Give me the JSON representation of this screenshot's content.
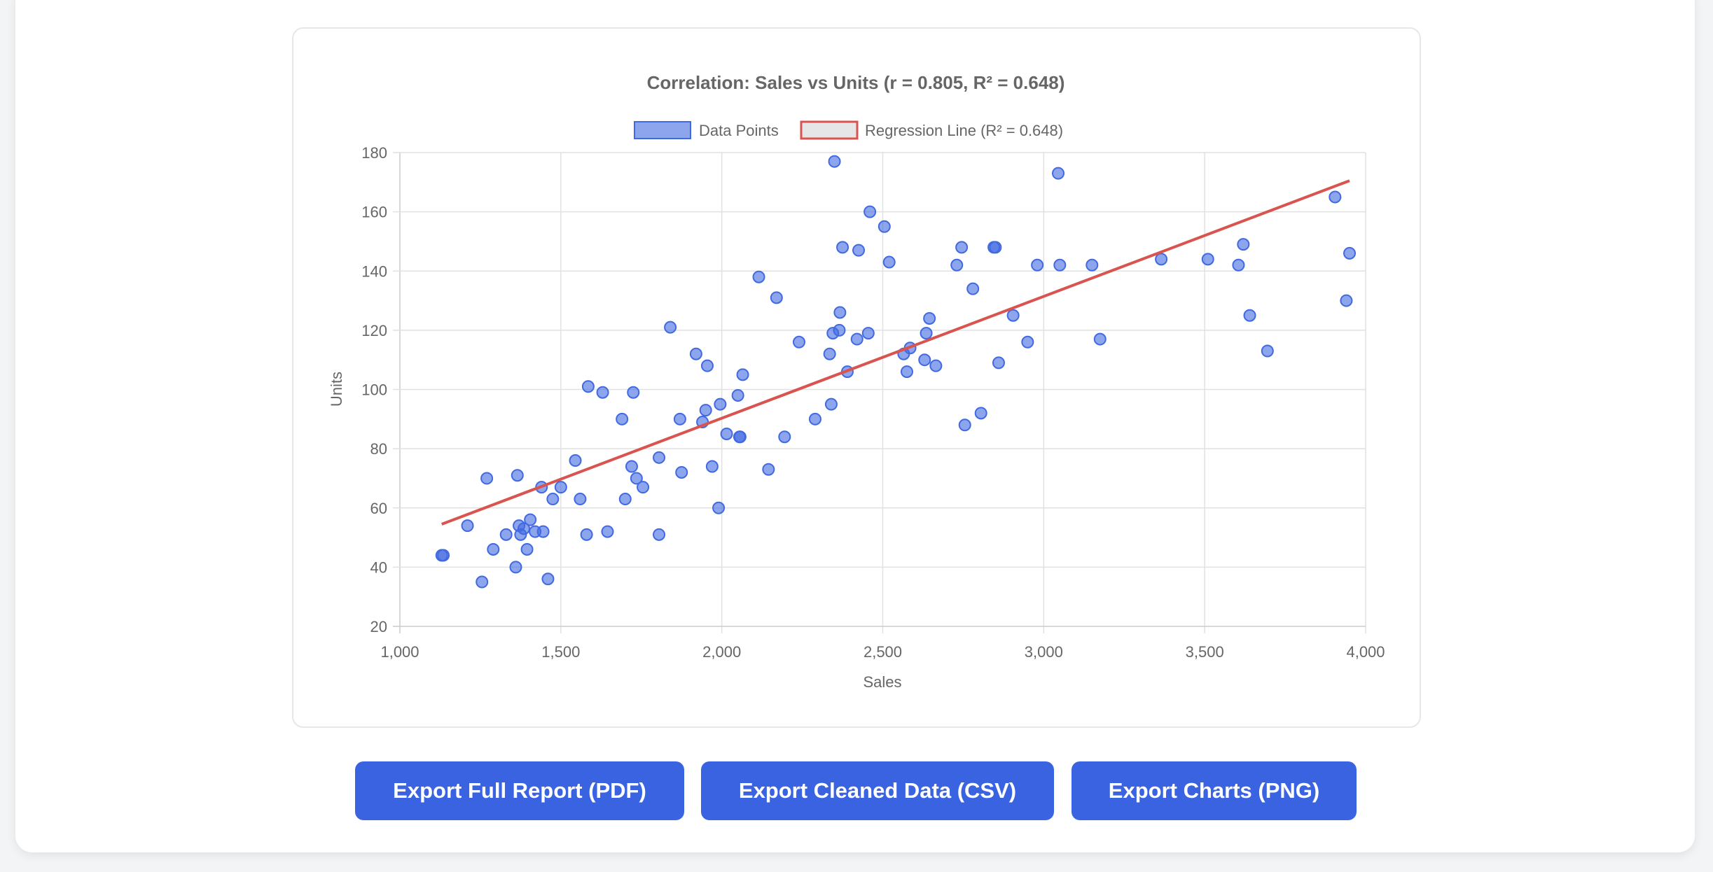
{
  "chart_data": {
    "type": "scatter",
    "title": "Correlation: Sales vs Units (r = 0.805, R² = 0.648)",
    "xlabel": "Sales",
    "ylabel": "Units",
    "xlim": [
      1000,
      4000
    ],
    "ylim": [
      20,
      180
    ],
    "xticks": [
      "1,000",
      "1,500",
      "2,000",
      "2,500",
      "3,000",
      "3,500",
      "4,000"
    ],
    "yticks": [
      "20",
      "40",
      "60",
      "80",
      "100",
      "120",
      "140",
      "160",
      "180"
    ],
    "grid": true,
    "legend_placement": "top",
    "legend": [
      {
        "label": "Data Points",
        "color": "#4169e1"
      },
      {
        "label": "Regression Line (R² = 0.648)",
        "color": "#d9534f"
      }
    ],
    "series": [
      {
        "name": "Data Points",
        "type": "scatter",
        "color": "#4169e1",
        "points": [
          [
            1130,
            44
          ],
          [
            1135,
            44
          ],
          [
            1210,
            54
          ],
          [
            1255,
            35
          ],
          [
            1270,
            70
          ],
          [
            1290,
            46
          ],
          [
            1330,
            51
          ],
          [
            1360,
            40
          ],
          [
            1365,
            71
          ],
          [
            1370,
            54
          ],
          [
            1375,
            51
          ],
          [
            1385,
            53
          ],
          [
            1395,
            46
          ],
          [
            1405,
            56
          ],
          [
            1420,
            52
          ],
          [
            1440,
            67
          ],
          [
            1445,
            52
          ],
          [
            1460,
            36
          ],
          [
            1475,
            63
          ],
          [
            1500,
            67
          ],
          [
            1545,
            76
          ],
          [
            1560,
            63
          ],
          [
            1580,
            51
          ],
          [
            1585,
            101
          ],
          [
            1630,
            99
          ],
          [
            1645,
            52
          ],
          [
            1690,
            90
          ],
          [
            1700,
            63
          ],
          [
            1720,
            74
          ],
          [
            1725,
            99
          ],
          [
            1735,
            70
          ],
          [
            1755,
            67
          ],
          [
            1805,
            51
          ],
          [
            1805,
            77
          ],
          [
            1840,
            121
          ],
          [
            1870,
            90
          ],
          [
            1875,
            72
          ],
          [
            1920,
            112
          ],
          [
            1940,
            89
          ],
          [
            1950,
            93
          ],
          [
            1955,
            108
          ],
          [
            1970,
            74
          ],
          [
            1990,
            60
          ],
          [
            1995,
            95
          ],
          [
            2015,
            85
          ],
          [
            2050,
            98
          ],
          [
            2055,
            84
          ],
          [
            2057,
            84
          ],
          [
            2065,
            105
          ],
          [
            2115,
            138
          ],
          [
            2145,
            73
          ],
          [
            2170,
            131
          ],
          [
            2195,
            84
          ],
          [
            2240,
            116
          ],
          [
            2290,
            90
          ],
          [
            2335,
            112
          ],
          [
            2340,
            95
          ],
          [
            2345,
            119
          ],
          [
            2350,
            177
          ],
          [
            2365,
            120
          ],
          [
            2367,
            126
          ],
          [
            2375,
            148
          ],
          [
            2390,
            106
          ],
          [
            2420,
            117
          ],
          [
            2425,
            147
          ],
          [
            2455,
            119
          ],
          [
            2460,
            160
          ],
          [
            2505,
            155
          ],
          [
            2520,
            143
          ],
          [
            2565,
            112
          ],
          [
            2575,
            106
          ],
          [
            2585,
            114
          ],
          [
            2630,
            110
          ],
          [
            2635,
            119
          ],
          [
            2645,
            124
          ],
          [
            2665,
            108
          ],
          [
            2730,
            142
          ],
          [
            2745,
            148
          ],
          [
            2755,
            88
          ],
          [
            2780,
            134
          ],
          [
            2805,
            92
          ],
          [
            2845,
            148
          ],
          [
            2850,
            148
          ],
          [
            2860,
            109
          ],
          [
            2905,
            125
          ],
          [
            2950,
            116
          ],
          [
            2980,
            142
          ],
          [
            3045,
            173
          ],
          [
            3050,
            142
          ],
          [
            3150,
            142
          ],
          [
            3175,
            117
          ],
          [
            3365,
            144
          ],
          [
            3510,
            144
          ],
          [
            3605,
            142
          ],
          [
            3620,
            149
          ],
          [
            3640,
            125
          ],
          [
            3695,
            113
          ],
          [
            3905,
            165
          ],
          [
            3940,
            130
          ],
          [
            3950,
            146
          ]
        ]
      },
      {
        "name": "Regression Line (R² = 0.648)",
        "type": "line",
        "color": "#d9534f",
        "points": [
          [
            1130,
            54.5
          ],
          [
            3950,
            170.5
          ]
        ]
      }
    ]
  },
  "buttons": {
    "pdf": "Export Full Report (PDF)",
    "csv": "Export Cleaned Data (CSV)",
    "png": "Export Charts (PNG)"
  }
}
